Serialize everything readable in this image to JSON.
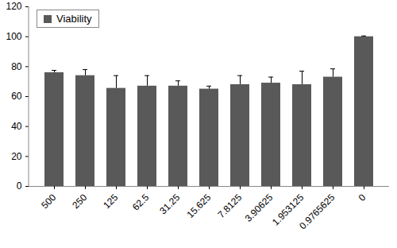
{
  "chart_data": {
    "type": "bar",
    "categories": [
      "500",
      "250",
      "125",
      "62.5",
      "31.25",
      "15.625",
      "7.8125",
      "3.90625",
      "1.953125",
      "0.9765625",
      "0"
    ],
    "series": [
      {
        "name": "Viability",
        "color": "#595959",
        "values": [
          76,
          74,
          65.5,
          67,
          67,
          65,
          68,
          69,
          68,
          73,
          100
        ],
        "errors": [
          1.5,
          4,
          8.5,
          7,
          3.5,
          2,
          6,
          4,
          9,
          5.5,
          0.5
        ]
      }
    ],
    "ylim": [
      0,
      120
    ],
    "yticks": [
      0,
      20,
      40,
      60,
      80,
      100,
      120
    ],
    "grid": false,
    "legend": "top-left"
  }
}
